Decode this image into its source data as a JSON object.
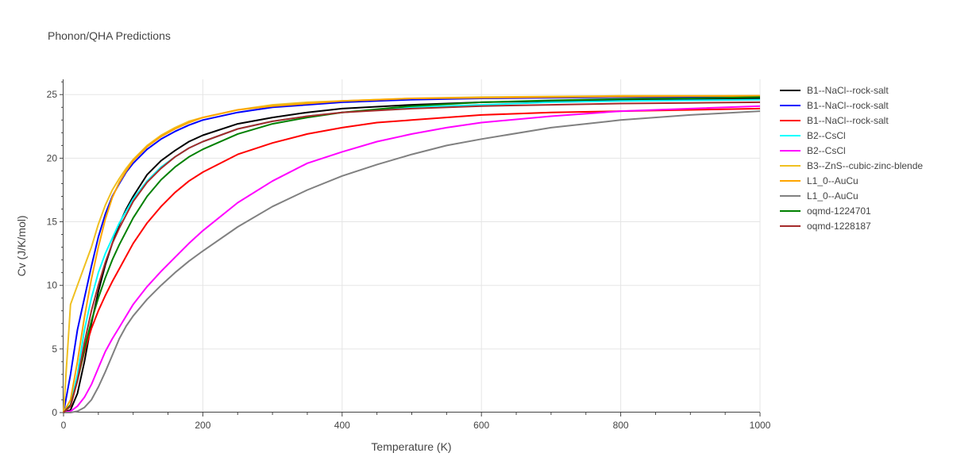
{
  "chart_data": {
    "type": "line",
    "title": "Phonon/QHA Predictions",
    "xlabel": "Temperature (K)",
    "ylabel": "Cv (J/K/mol)",
    "xlim": [
      0,
      1000
    ],
    "ylim": [
      0,
      26.2
    ],
    "x_ticks": [
      0,
      200,
      400,
      600,
      800,
      1000
    ],
    "y_ticks": [
      0,
      5,
      10,
      15,
      20,
      25
    ],
    "grid": true,
    "legend_position": "right",
    "series": [
      {
        "name": "B1--NaCl--rock-salt",
        "color": "#000000",
        "points": [
          [
            0,
            0
          ],
          [
            10,
            0.2
          ],
          [
            20,
            1.5
          ],
          [
            30,
            4
          ],
          [
            40,
            7
          ],
          [
            50,
            9.5
          ],
          [
            60,
            11.6
          ],
          [
            70,
            13.3
          ],
          [
            80,
            14.8
          ],
          [
            90,
            16
          ],
          [
            100,
            17
          ],
          [
            120,
            18.7
          ],
          [
            140,
            19.8
          ],
          [
            160,
            20.6
          ],
          [
            180,
            21.3
          ],
          [
            200,
            21.8
          ],
          [
            250,
            22.7
          ],
          [
            300,
            23.2
          ],
          [
            350,
            23.6
          ],
          [
            400,
            23.9
          ],
          [
            500,
            24.2
          ],
          [
            600,
            24.4
          ],
          [
            700,
            24.5
          ],
          [
            800,
            24.6
          ],
          [
            900,
            24.65
          ],
          [
            1000,
            24.7
          ]
        ]
      },
      {
        "name": "B1--NaCl--rock-salt",
        "color": "#0000ff",
        "points": [
          [
            0,
            0
          ],
          [
            10,
            3
          ],
          [
            20,
            6.5
          ],
          [
            30,
            9
          ],
          [
            40,
            11.5
          ],
          [
            50,
            13.8
          ],
          [
            60,
            15.6
          ],
          [
            70,
            17
          ],
          [
            80,
            18
          ],
          [
            90,
            18.9
          ],
          [
            100,
            19.6
          ],
          [
            120,
            20.7
          ],
          [
            140,
            21.5
          ],
          [
            160,
            22.1
          ],
          [
            180,
            22.6
          ],
          [
            200,
            23
          ],
          [
            250,
            23.6
          ],
          [
            300,
            24
          ],
          [
            350,
            24.2
          ],
          [
            400,
            24.4
          ],
          [
            500,
            24.6
          ],
          [
            600,
            24.7
          ],
          [
            700,
            24.75
          ],
          [
            800,
            24.8
          ],
          [
            1000,
            24.8
          ]
        ]
      },
      {
        "name": "B1--NaCl--rock-salt",
        "color": "#ff0000",
        "points": [
          [
            0,
            0
          ],
          [
            10,
            0.5
          ],
          [
            20,
            2.5
          ],
          [
            30,
            4.8
          ],
          [
            40,
            6.6
          ],
          [
            50,
            8
          ],
          [
            60,
            9.2
          ],
          [
            70,
            10.3
          ],
          [
            80,
            11.3
          ],
          [
            100,
            13.3
          ],
          [
            120,
            14.9
          ],
          [
            140,
            16.2
          ],
          [
            160,
            17.3
          ],
          [
            180,
            18.2
          ],
          [
            200,
            18.9
          ],
          [
            250,
            20.3
          ],
          [
            300,
            21.2
          ],
          [
            350,
            21.9
          ],
          [
            400,
            22.4
          ],
          [
            450,
            22.8
          ],
          [
            500,
            23
          ],
          [
            600,
            23.4
          ],
          [
            700,
            23.6
          ],
          [
            800,
            23.7
          ],
          [
            900,
            23.8
          ],
          [
            1000,
            23.9
          ]
        ]
      },
      {
        "name": "B2--CsCl",
        "color": "#00ffff",
        "points": [
          [
            0,
            0
          ],
          [
            10,
            0.6
          ],
          [
            20,
            3
          ],
          [
            30,
            6.5
          ],
          [
            40,
            9
          ],
          [
            50,
            11
          ],
          [
            60,
            12.5
          ],
          [
            80,
            14.9
          ],
          [
            100,
            16.8
          ],
          [
            120,
            18.2
          ],
          [
            140,
            19.3
          ],
          [
            160,
            20.1
          ],
          [
            180,
            20.8
          ],
          [
            200,
            21.3
          ],
          [
            250,
            22.3
          ],
          [
            300,
            22.9
          ],
          [
            350,
            23.3
          ],
          [
            400,
            23.6
          ],
          [
            500,
            24
          ],
          [
            600,
            24.2
          ],
          [
            700,
            24.4
          ],
          [
            800,
            24.5
          ],
          [
            1000,
            24.6
          ]
        ]
      },
      {
        "name": "B2--CsCl",
        "color": "#ff00ff",
        "points": [
          [
            0,
            0
          ],
          [
            10,
            0.1
          ],
          [
            20,
            0.5
          ],
          [
            30,
            1.2
          ],
          [
            40,
            2.2
          ],
          [
            50,
            3.5
          ],
          [
            60,
            4.8
          ],
          [
            70,
            5.8
          ],
          [
            80,
            6.7
          ],
          [
            100,
            8.5
          ],
          [
            120,
            9.9
          ],
          [
            140,
            11.1
          ],
          [
            160,
            12.2
          ],
          [
            180,
            13.3
          ],
          [
            200,
            14.3
          ],
          [
            250,
            16.5
          ],
          [
            300,
            18.2
          ],
          [
            350,
            19.6
          ],
          [
            400,
            20.5
          ],
          [
            450,
            21.3
          ],
          [
            500,
            21.9
          ],
          [
            550,
            22.4
          ],
          [
            600,
            22.8
          ],
          [
            700,
            23.3
          ],
          [
            800,
            23.7
          ],
          [
            900,
            23.9
          ],
          [
            1000,
            24.1
          ]
        ]
      },
      {
        "name": "B3--ZnS--cubic-zinc-blende",
        "color": "#f0c020",
        "points": [
          [
            0,
            0
          ],
          [
            10,
            8.5
          ],
          [
            20,
            10
          ],
          [
            30,
            11.5
          ],
          [
            40,
            13
          ],
          [
            50,
            14.8
          ],
          [
            60,
            16.3
          ],
          [
            70,
            17.5
          ],
          [
            80,
            18.4
          ],
          [
            90,
            19.2
          ],
          [
            100,
            19.9
          ],
          [
            120,
            21
          ],
          [
            140,
            21.8
          ],
          [
            160,
            22.4
          ],
          [
            180,
            22.9
          ],
          [
            200,
            23.2
          ],
          [
            250,
            23.8
          ],
          [
            300,
            24.2
          ],
          [
            350,
            24.4
          ],
          [
            400,
            24.5
          ],
          [
            500,
            24.7
          ],
          [
            600,
            24.8
          ],
          [
            700,
            24.85
          ],
          [
            800,
            24.9
          ],
          [
            1000,
            24.9
          ]
        ]
      },
      {
        "name": "L1_0--AuCu",
        "color": "#ffa500",
        "points": [
          [
            0,
            0
          ],
          [
            10,
            1
          ],
          [
            20,
            4
          ],
          [
            30,
            7.5
          ],
          [
            40,
            10.5
          ],
          [
            50,
            13
          ],
          [
            60,
            15.2
          ],
          [
            70,
            16.9
          ],
          [
            80,
            18.1
          ],
          [
            90,
            19
          ],
          [
            100,
            19.8
          ],
          [
            120,
            20.9
          ],
          [
            140,
            21.7
          ],
          [
            160,
            22.3
          ],
          [
            180,
            22.8
          ],
          [
            200,
            23.2
          ],
          [
            250,
            23.8
          ],
          [
            300,
            24.1
          ],
          [
            350,
            24.3
          ],
          [
            400,
            24.5
          ],
          [
            500,
            24.7
          ],
          [
            600,
            24.75
          ],
          [
            700,
            24.8
          ],
          [
            800,
            24.85
          ],
          [
            1000,
            24.9
          ]
        ]
      },
      {
        "name": "L1_0--AuCu",
        "color": "#808080",
        "points": [
          [
            0,
            0
          ],
          [
            10,
            0
          ],
          [
            20,
            0.1
          ],
          [
            30,
            0.4
          ],
          [
            40,
            1
          ],
          [
            50,
            2
          ],
          [
            60,
            3.2
          ],
          [
            70,
            4.5
          ],
          [
            80,
            5.8
          ],
          [
            90,
            6.8
          ],
          [
            100,
            7.6
          ],
          [
            120,
            8.9
          ],
          [
            140,
            10
          ],
          [
            160,
            11
          ],
          [
            180,
            11.9
          ],
          [
            200,
            12.7
          ],
          [
            250,
            14.6
          ],
          [
            300,
            16.2
          ],
          [
            350,
            17.5
          ],
          [
            400,
            18.6
          ],
          [
            450,
            19.5
          ],
          [
            500,
            20.3
          ],
          [
            550,
            21
          ],
          [
            600,
            21.5
          ],
          [
            700,
            22.4
          ],
          [
            800,
            23
          ],
          [
            900,
            23.4
          ],
          [
            1000,
            23.7
          ]
        ]
      },
      {
        "name": "oqmd-1224701",
        "color": "#008000",
        "points": [
          [
            0,
            0
          ],
          [
            10,
            0.6
          ],
          [
            20,
            2.5
          ],
          [
            30,
            5
          ],
          [
            40,
            7.2
          ],
          [
            50,
            9
          ],
          [
            60,
            10.6
          ],
          [
            70,
            12
          ],
          [
            80,
            13.2
          ],
          [
            100,
            15.3
          ],
          [
            120,
            17
          ],
          [
            140,
            18.3
          ],
          [
            160,
            19.3
          ],
          [
            180,
            20.1
          ],
          [
            200,
            20.7
          ],
          [
            250,
            21.9
          ],
          [
            300,
            22.7
          ],
          [
            350,
            23.2
          ],
          [
            400,
            23.6
          ],
          [
            500,
            24.1
          ],
          [
            600,
            24.4
          ],
          [
            700,
            24.55
          ],
          [
            800,
            24.65
          ],
          [
            900,
            24.7
          ],
          [
            1000,
            24.8
          ]
        ]
      },
      {
        "name": "oqmd-1228187",
        "color": "#a52a2a",
        "points": [
          [
            0,
            0
          ],
          [
            10,
            0.5
          ],
          [
            20,
            2.5
          ],
          [
            30,
            5.5
          ],
          [
            40,
            8
          ],
          [
            50,
            10
          ],
          [
            60,
            11.8
          ],
          [
            70,
            13.3
          ],
          [
            80,
            14.5
          ],
          [
            100,
            16.6
          ],
          [
            120,
            18.1
          ],
          [
            140,
            19.2
          ],
          [
            160,
            20.1
          ],
          [
            180,
            20.8
          ],
          [
            200,
            21.3
          ],
          [
            250,
            22.3
          ],
          [
            300,
            22.9
          ],
          [
            350,
            23.3
          ],
          [
            400,
            23.6
          ],
          [
            500,
            23.9
          ],
          [
            600,
            24.1
          ],
          [
            700,
            24.2
          ],
          [
            800,
            24.3
          ],
          [
            900,
            24.35
          ],
          [
            1000,
            24.4
          ]
        ]
      }
    ]
  }
}
